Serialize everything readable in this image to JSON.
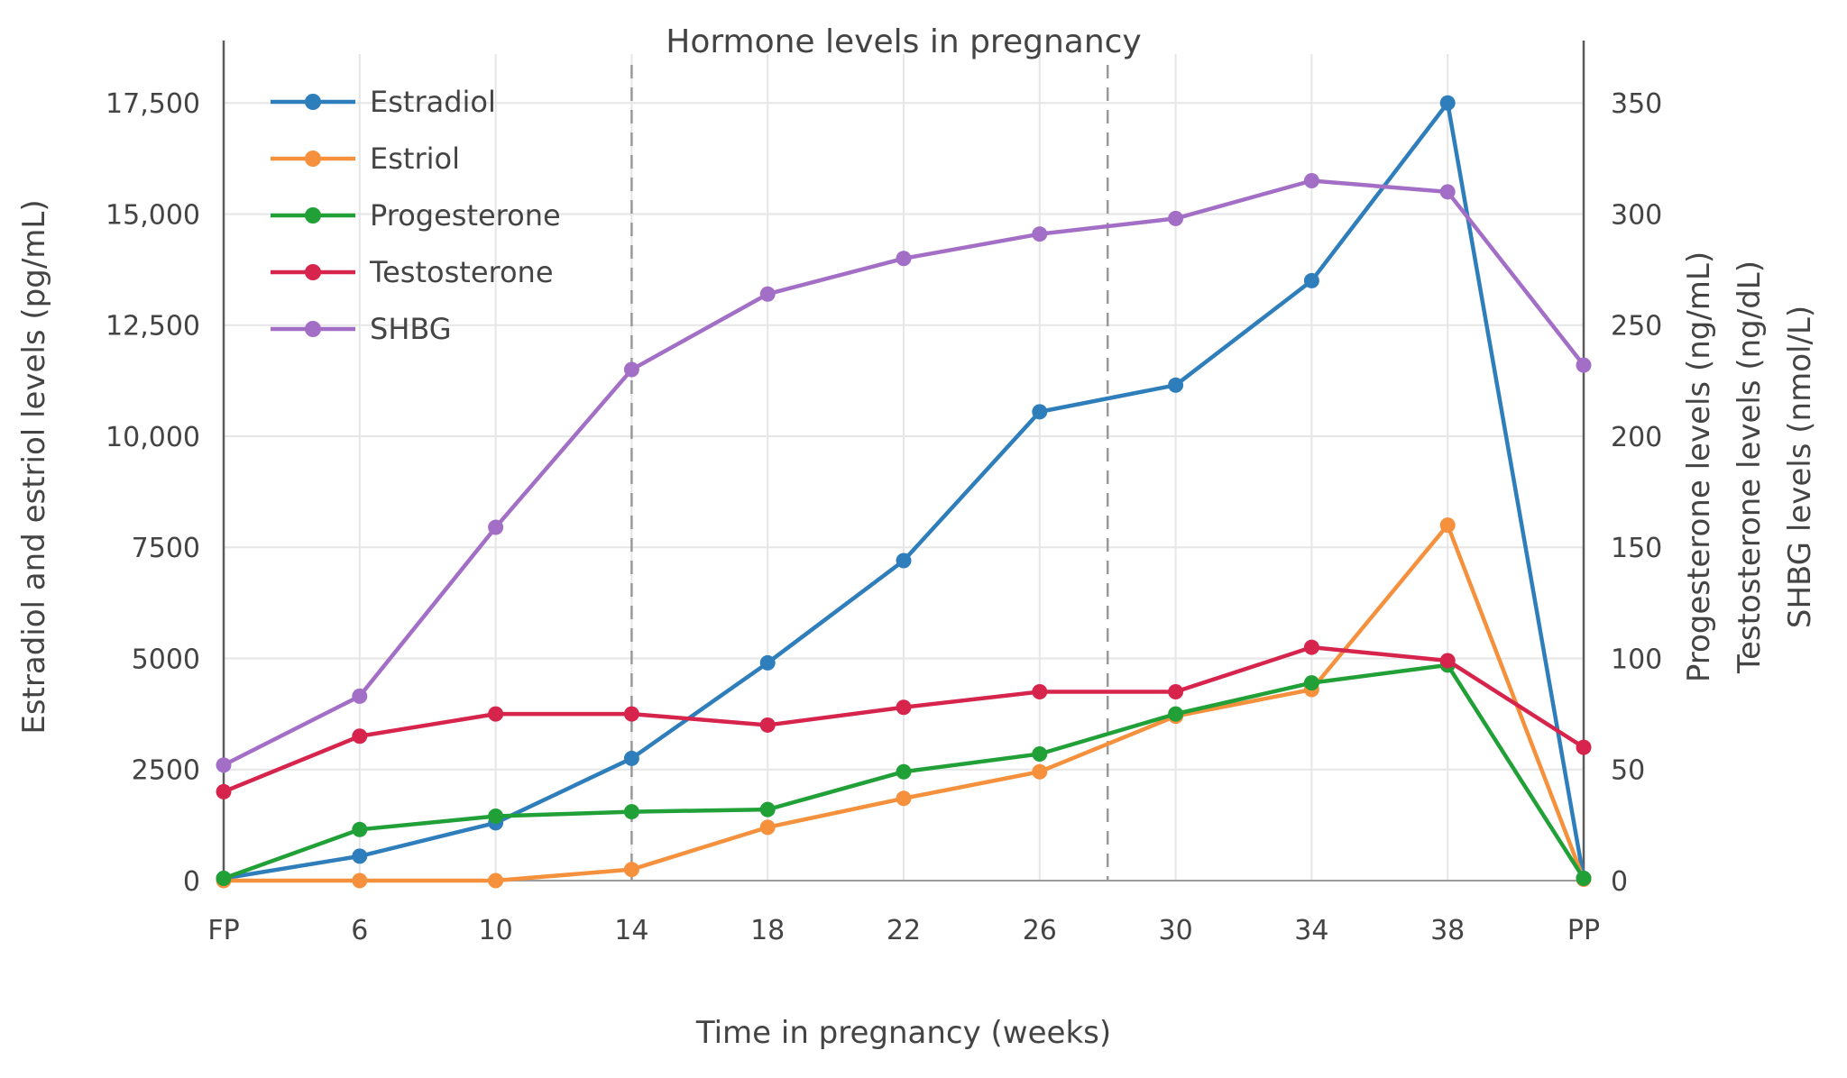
{
  "page": {
    "background": "#ffffff",
    "text_color": "#444444",
    "grid_color": "#e6e6e6"
  },
  "chart_data": {
    "type": "line",
    "title": "Hormone levels in pregnancy",
    "xlabel": "Time in pregnancy (weeks)",
    "ylabel_left": "Estradiol and estriol levels (pg/mL)",
    "ylabels_right": [
      "Progesterone levels (ng/mL)",
      "Testosterone levels (ng/dL)",
      "SHBG levels (nmol/L)"
    ],
    "categories": [
      "FP",
      "6",
      "10",
      "14",
      "18",
      "22",
      "26",
      "30",
      "34",
      "38",
      "PP"
    ],
    "left_axis": {
      "ticks": [
        0,
        2500,
        5000,
        7500,
        10000,
        12500,
        15000,
        17500
      ],
      "tick_labels": [
        "0",
        "2500",
        "5000",
        "7500",
        "10,000",
        "12,500",
        "15,000",
        "17,500"
      ],
      "max": 18600
    },
    "right_axis": {
      "ticks": [
        0,
        50,
        100,
        150,
        200,
        250,
        300,
        350
      ],
      "tick_labels": [
        "0",
        "50",
        "100",
        "150",
        "200",
        "250",
        "300",
        "350"
      ],
      "max": 372
    },
    "series": [
      {
        "name": "Estradiol",
        "color": "#2e7ebc",
        "axis": "left",
        "values": [
          50,
          550,
          1300,
          2750,
          4900,
          7200,
          10550,
          11150,
          13500,
          17500,
          50
        ]
      },
      {
        "name": "Estriol",
        "color": "#f5913d",
        "axis": "left",
        "values": [
          0,
          0,
          0,
          250,
          1200,
          1850,
          2450,
          3700,
          4300,
          8000,
          30
        ]
      },
      {
        "name": "Progesterone",
        "color": "#21a038",
        "axis": "right",
        "values": [
          1,
          23,
          29,
          31,
          32,
          49,
          57,
          75,
          89,
          97,
          1
        ]
      },
      {
        "name": "Testosterone",
        "color": "#d6244c",
        "axis": "right",
        "values": [
          40,
          65,
          75,
          75,
          70,
          78,
          85,
          85,
          105,
          99,
          60
        ]
      },
      {
        "name": "SHBG",
        "color": "#a36fc6",
        "axis": "right",
        "values": [
          52,
          83,
          159,
          230,
          264,
          280,
          291,
          298,
          315,
          310,
          232
        ]
      }
    ],
    "trimester_lines": [
      {
        "name": "trimester-divider-week-14",
        "pos": 3
      },
      {
        "name": "trimester-divider-week-28",
        "pos": 6.5
      }
    ],
    "boundary_lines": [
      {
        "name": "fp-boundary-line",
        "pos": 0
      },
      {
        "name": "pp-boundary-line",
        "pos": 10
      }
    ],
    "legend_position": "top-left",
    "grid": true,
    "ylim_left": [
      0,
      18600
    ],
    "ylim_right": [
      0,
      372
    ]
  }
}
